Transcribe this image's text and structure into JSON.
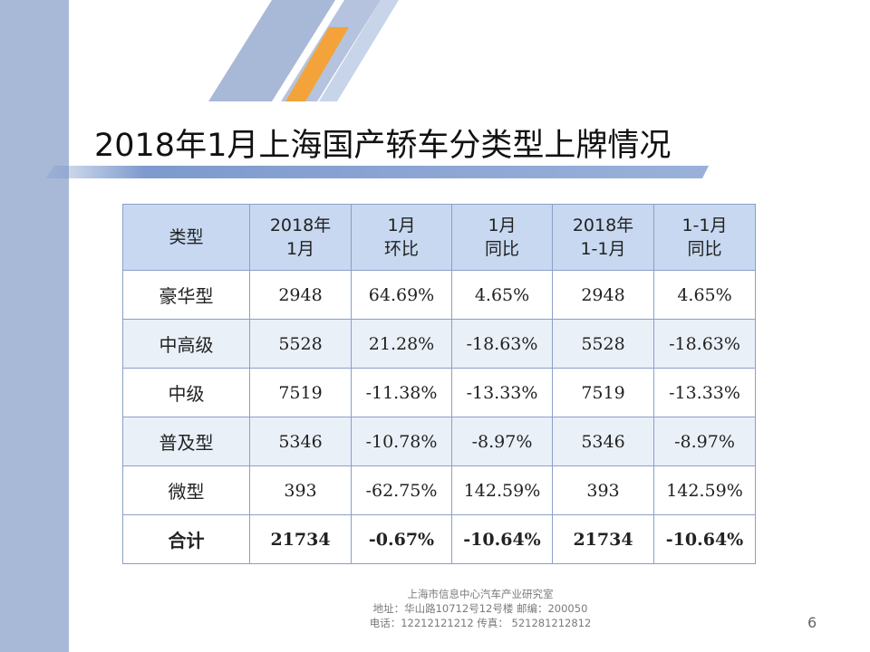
{
  "slide": {
    "title": "2018年1月上海国产轿车分类型上牌情况",
    "page_number": "6"
  },
  "colors": {
    "left_bar": "#a8b9d8",
    "accent_orange": "#f4a33a",
    "header_fill": "#c7d8f0",
    "rule_blue": "#6f8fc8"
  },
  "table": {
    "headers": [
      [
        "类型",
        ""
      ],
      [
        "2018年",
        "1月"
      ],
      [
        "1月",
        "环比"
      ],
      [
        "1月",
        "同比"
      ],
      [
        "2018年",
        "1-1月"
      ],
      [
        "1-1月",
        "同比"
      ]
    ],
    "rows": [
      [
        "豪华型",
        "2948",
        "64.69%",
        "4.65%",
        "2948",
        "4.65%"
      ],
      [
        "中高级",
        "5528",
        "21.28%",
        "-18.63%",
        "5528",
        "-18.63%"
      ],
      [
        "中级",
        "7519",
        "-11.38%",
        "-13.33%",
        "7519",
        "-13.33%"
      ],
      [
        "普及型",
        "5346",
        "-10.78%",
        "-8.97%",
        "5346",
        "-8.97%"
      ],
      [
        "微型",
        "393",
        "-62.75%",
        "142.59%",
        "393",
        "142.59%"
      ],
      [
        "合计",
        "21734",
        "-0.67%",
        "-10.64%",
        "21734",
        "-10.64%"
      ]
    ]
  },
  "footer": {
    "line1": "上海市信息中心汽车产业研究室",
    "line2": "地址：华山路10712号12号楼      邮编：200050",
    "line3": "电话：12212121212   传真：  521281212812"
  }
}
